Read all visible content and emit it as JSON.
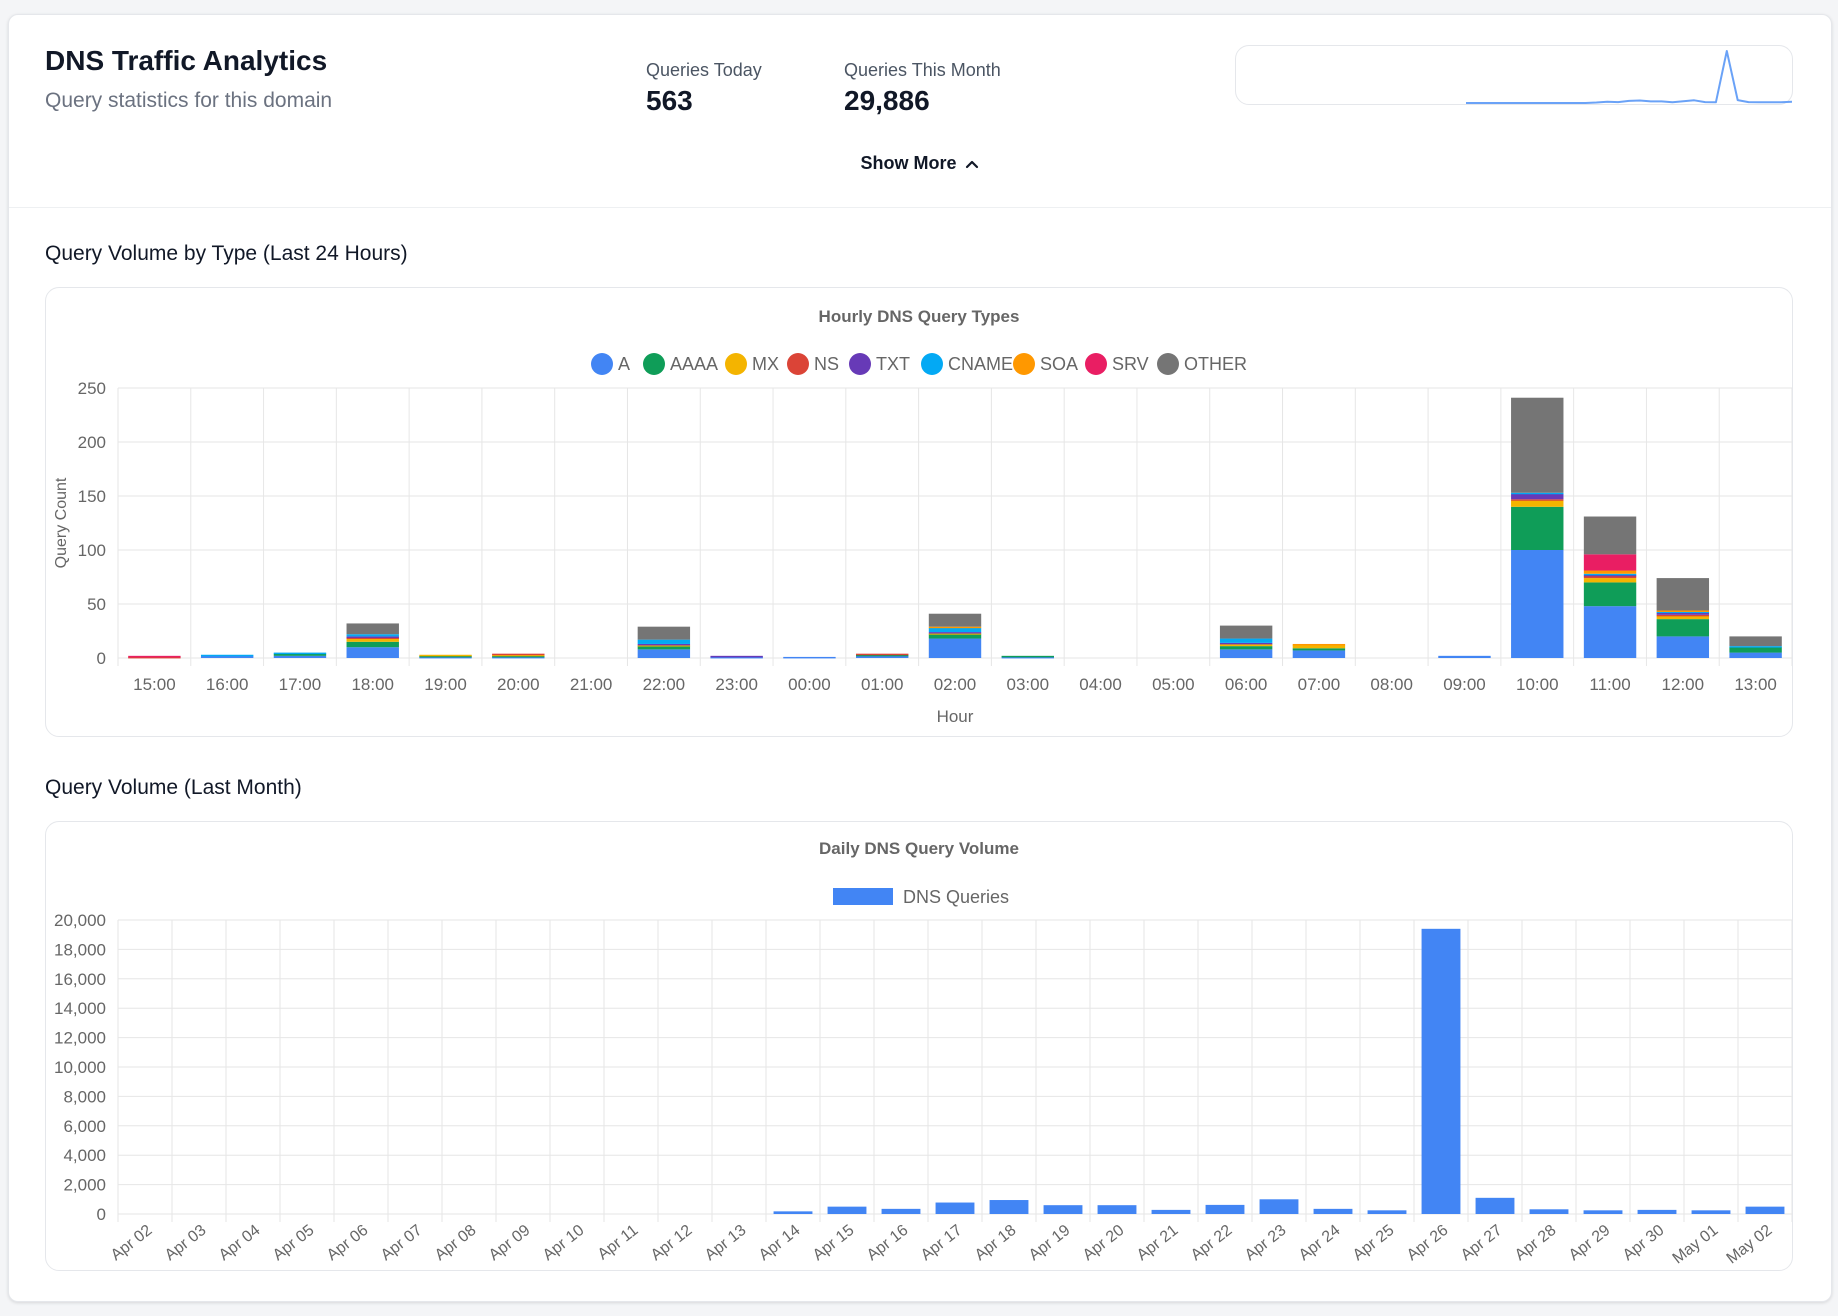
{
  "header": {
    "title": "DNS Traffic Analytics",
    "subtitle": "Query statistics for this domain",
    "stats": [
      {
        "label": "Queries Today",
        "value": "563"
      },
      {
        "label": "Queries This Month",
        "value": "29,886"
      }
    ],
    "show_more": "Show More"
  },
  "colors": {
    "A": "#4285f4",
    "AAAA": "#0f9d58",
    "MX": "#f4b400",
    "NS": "#db4437",
    "TXT": "#673ab7",
    "CNAME": "#03a9f4",
    "SOA": "#ff9800",
    "SRV": "#e91e63",
    "OTHER": "#757575",
    "sparkline": "#6aa2f7",
    "bar": "#4285f4"
  },
  "sections": {
    "hourly": "Query Volume by Type (Last 24 Hours)",
    "monthly": "Query Volume (Last Month)"
  },
  "chart_data": [
    {
      "type": "bar",
      "stacked": true,
      "title": "Hourly DNS Query Types",
      "xlabel": "Hour",
      "ylabel": "Query Count",
      "ylim": [
        0,
        250
      ],
      "yticks": [
        0,
        50,
        100,
        150,
        200,
        250
      ],
      "legend": "top",
      "categories": [
        "15:00",
        "16:00",
        "17:00",
        "18:00",
        "19:00",
        "20:00",
        "21:00",
        "22:00",
        "23:00",
        "00:00",
        "01:00",
        "02:00",
        "03:00",
        "04:00",
        "05:00",
        "06:00",
        "07:00",
        "08:00",
        "09:00",
        "10:00",
        "11:00",
        "12:00",
        "13:00"
      ],
      "series": [
        {
          "name": "A",
          "values": [
            0,
            2,
            2,
            10,
            1,
            1,
            0,
            8,
            1,
            1,
            2,
            18,
            1,
            0,
            0,
            8,
            7,
            0,
            2,
            100,
            48,
            20,
            5
          ]
        },
        {
          "name": "AAAA",
          "values": [
            0,
            0,
            2,
            5,
            1,
            1,
            0,
            3,
            0,
            0,
            1,
            4,
            1,
            0,
            0,
            3,
            2,
            0,
            0,
            40,
            22,
            16,
            5
          ]
        },
        {
          "name": "MX",
          "values": [
            0,
            0,
            0,
            3,
            1,
            1,
            0,
            1,
            0,
            0,
            0,
            1,
            0,
            0,
            0,
            2,
            3,
            0,
            0,
            6,
            4,
            3,
            0
          ]
        },
        {
          "name": "NS",
          "values": [
            1,
            0,
            0,
            1,
            0,
            1,
            0,
            0,
            0,
            0,
            1,
            0,
            0,
            0,
            0,
            0,
            0,
            0,
            0,
            1,
            2,
            1,
            0
          ]
        },
        {
          "name": "TXT",
          "values": [
            0,
            0,
            0,
            1,
            0,
            0,
            0,
            1,
            1,
            0,
            0,
            1,
            0,
            0,
            0,
            1,
            0,
            0,
            0,
            5,
            1,
            2,
            0
          ]
        },
        {
          "name": "CNAME",
          "values": [
            0,
            1,
            1,
            2,
            0,
            0,
            0,
            4,
            0,
            0,
            0,
            4,
            0,
            0,
            0,
            4,
            0,
            0,
            0,
            1,
            1,
            1,
            1
          ]
        },
        {
          "name": "SOA",
          "values": [
            0,
            0,
            0,
            0,
            0,
            0,
            0,
            0,
            0,
            0,
            0,
            1,
            0,
            0,
            0,
            0,
            1,
            0,
            0,
            0,
            3,
            1,
            0
          ]
        },
        {
          "name": "SRV",
          "values": [
            1,
            0,
            0,
            0,
            0,
            0,
            0,
            0,
            0,
            0,
            0,
            0,
            0,
            0,
            0,
            0,
            0,
            0,
            0,
            0,
            15,
            0,
            0
          ]
        },
        {
          "name": "OTHER",
          "values": [
            0,
            0,
            0,
            10,
            0,
            0,
            0,
            12,
            0,
            0,
            0,
            12,
            0,
            0,
            0,
            12,
            0,
            0,
            0,
            88,
            35,
            30,
            9
          ]
        }
      ]
    },
    {
      "type": "bar",
      "title": "Daily DNS Query Volume",
      "legend": "top",
      "ylim": [
        0,
        20000
      ],
      "yticks": [
        0,
        2000,
        4000,
        6000,
        8000,
        10000,
        12000,
        14000,
        16000,
        18000,
        20000
      ],
      "ytick_labels": [
        "0",
        "2,000",
        "4,000",
        "6,000",
        "8,000",
        "10,000",
        "12,000",
        "14,000",
        "16,000",
        "18,000",
        "20,000"
      ],
      "categories": [
        "Apr 02",
        "Apr 03",
        "Apr 04",
        "Apr 05",
        "Apr 06",
        "Apr 07",
        "Apr 08",
        "Apr 09",
        "Apr 10",
        "Apr 11",
        "Apr 12",
        "Apr 13",
        "Apr 14",
        "Apr 15",
        "Apr 16",
        "Apr 17",
        "Apr 18",
        "Apr 19",
        "Apr 20",
        "Apr 21",
        "Apr 22",
        "Apr 23",
        "Apr 24",
        "Apr 25",
        "Apr 26",
        "Apr 27",
        "Apr 28",
        "Apr 29",
        "Apr 30",
        "May 01",
        "May 02"
      ],
      "series": [
        {
          "name": "DNS Queries",
          "values": [
            0,
            0,
            0,
            0,
            0,
            0,
            0,
            0,
            0,
            0,
            0,
            0,
            180,
            500,
            350,
            780,
            950,
            600,
            600,
            280,
            620,
            1000,
            350,
            250,
            19400,
            1100,
            320,
            250,
            280,
            250,
            500
          ]
        }
      ]
    }
  ],
  "sparkline": {
    "description_values": [
      0,
      0,
      0,
      0,
      0,
      0,
      0,
      0,
      0,
      0,
      0,
      0,
      180,
      500,
      350,
      780,
      950,
      600,
      600,
      280,
      620,
      1000,
      350,
      250,
      19400,
      1100,
      320,
      250,
      280,
      250,
      500
    ]
  }
}
